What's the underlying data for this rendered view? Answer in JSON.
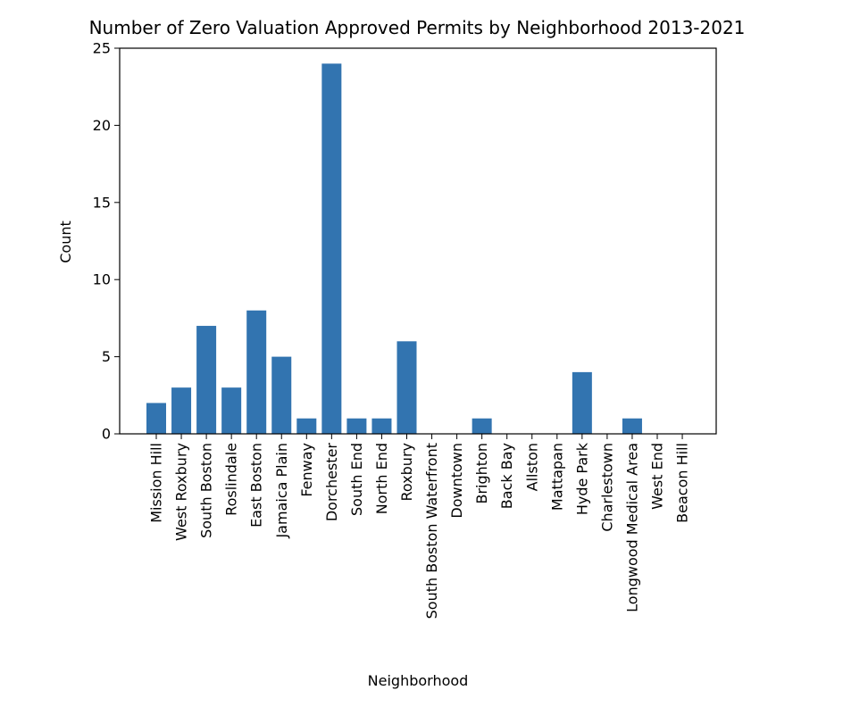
{
  "chart_data": {
    "type": "bar",
    "title": "Number of Zero Valuation Approved Permits by Neighborhood 2013-2021",
    "xlabel": "Neighborhood",
    "ylabel": "Count",
    "ylim": [
      0,
      25
    ],
    "yticks": [
      "0",
      "5",
      "10",
      "15",
      "20",
      "25"
    ],
    "grid": false,
    "bar_color": "#3274b0",
    "categories": [
      "Mission Hill",
      "West Roxbury",
      "South Boston",
      "Roslindale",
      "East Boston",
      "Jamaica Plain",
      "Fenway",
      "Dorchester",
      "South End",
      "North End",
      "Roxbury",
      "South Boston Waterfront",
      "Downtown",
      "Brighton",
      "Back Bay",
      "Allston",
      "Mattapan",
      "Hyde Park",
      "Charlestown",
      "Longwood Medical Area",
      "West End",
      "Beacon Hill"
    ],
    "values": [
      2,
      3,
      7,
      3,
      8,
      5,
      1,
      24,
      1,
      1,
      6,
      0,
      0,
      1,
      0,
      0,
      0,
      4,
      0,
      1,
      0,
      0
    ]
  }
}
